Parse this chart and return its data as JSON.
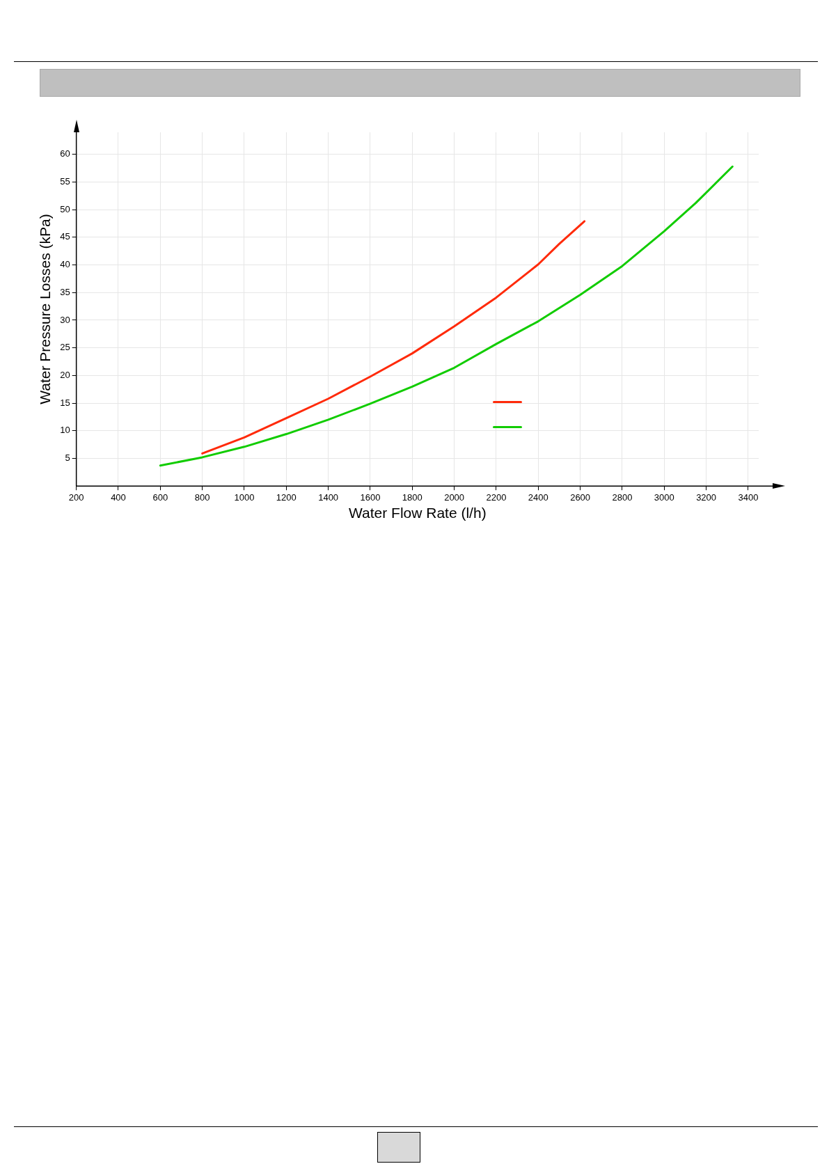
{
  "chart_data": {
    "type": "line",
    "xlabel": "Water Flow Rate (l/h)",
    "ylabel": "Water Pressure Losses (kPa)",
    "xlim": [
      200,
      3450
    ],
    "xticks": [
      200,
      400,
      600,
      800,
      1000,
      1200,
      1400,
      1600,
      1800,
      2000,
      2200,
      2400,
      2600,
      2800,
      3000,
      3200,
      3400
    ],
    "ylim": [
      0,
      64
    ],
    "yticks": [
      5,
      10,
      15,
      20,
      25,
      30,
      35,
      40,
      45,
      50,
      55,
      60
    ],
    "grid": true,
    "legend": false,
    "marker": "none",
    "line_style": "solid",
    "series": [
      {
        "color": "#ff2a0a",
        "x": [
          800,
          1000,
          1200,
          1400,
          1600,
          1800,
          2000,
          2200,
          2400,
          2500,
          2620
        ],
        "values": [
          5.9,
          8.8,
          12.3,
          15.8,
          19.8,
          24.0,
          28.9,
          34.1,
          40.1,
          43.8,
          47.9
        ]
      },
      {
        "color": "#11cc00",
        "x": [
          600,
          800,
          1000,
          1200,
          1400,
          1600,
          1800,
          2000,
          2200,
          2400,
          2600,
          2800,
          3000,
          3150,
          3325
        ],
        "values": [
          3.7,
          5.2,
          7.1,
          9.4,
          12.0,
          14.9,
          18.0,
          21.4,
          25.7,
          29.8,
          34.6,
          39.8,
          46.1,
          51.2,
          57.8
        ]
      }
    ]
  }
}
